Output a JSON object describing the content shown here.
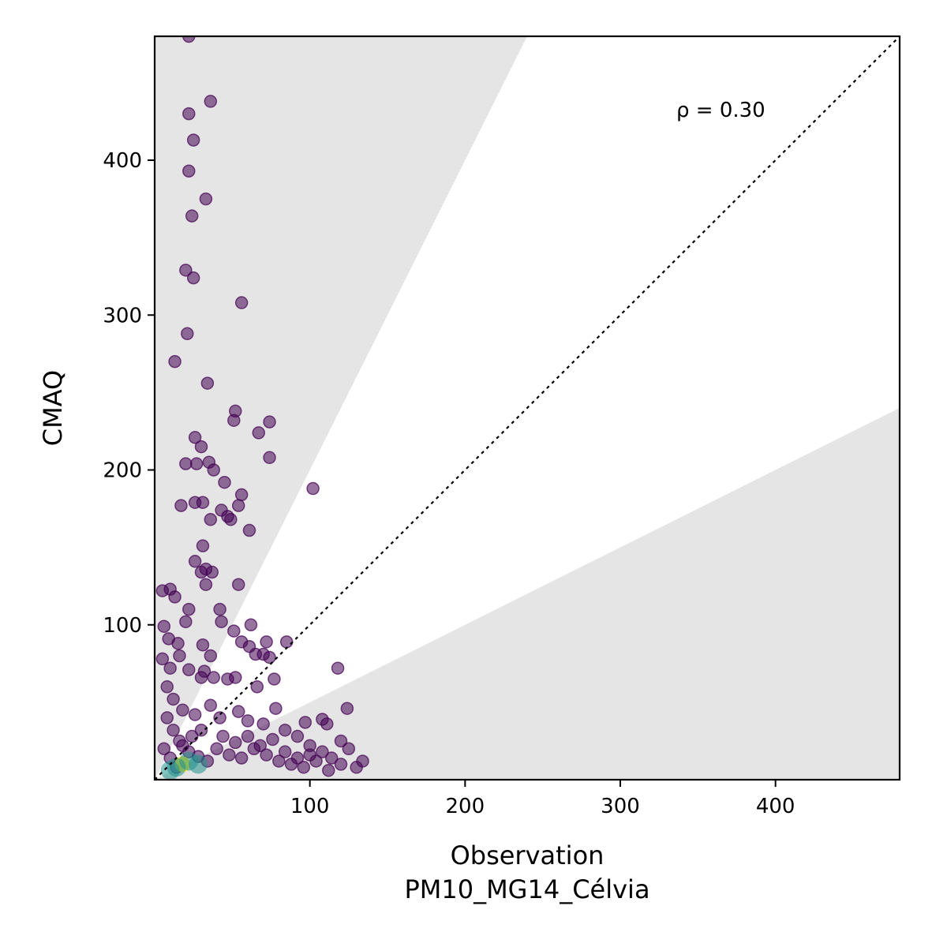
{
  "chart_data": {
    "type": "scatter",
    "title": "",
    "xlabel": "Observation",
    "xlabel_sub": "PM10_MG14_Célvia",
    "ylabel": "CMAQ",
    "xlim": [
      0,
      480
    ],
    "ylim": [
      0,
      480
    ],
    "xticks": [
      100,
      200,
      300,
      400
    ],
    "yticks": [
      100,
      200,
      300,
      400
    ],
    "grid": false,
    "annotation": "ρ = 0.30",
    "reference_line": {
      "type": "1:1",
      "style": "dotted",
      "color": "#000000"
    },
    "shaded_regions": [
      {
        "name": "above 2:1",
        "slope": 2,
        "color": "#e5e5e5"
      },
      {
        "name": "below 1:2",
        "slope": 0.5,
        "color": "#e5e5e5"
      }
    ],
    "colormap": "viridis (point density)",
    "colors": {
      "low_density": "#440154",
      "mid_density": "#21918c",
      "high_density": "#fde725"
    },
    "points": [
      [
        22,
        480
      ],
      [
        36,
        438
      ],
      [
        22,
        430
      ],
      [
        25,
        413
      ],
      [
        22,
        393
      ],
      [
        33,
        375
      ],
      [
        24,
        364
      ],
      [
        20,
        329
      ],
      [
        25,
        324
      ],
      [
        56,
        308
      ],
      [
        21,
        288
      ],
      [
        13,
        270
      ],
      [
        34,
        256
      ],
      [
        52,
        238
      ],
      [
        51,
        232
      ],
      [
        74,
        231
      ],
      [
        67,
        224
      ],
      [
        26,
        221
      ],
      [
        30,
        215
      ],
      [
        74,
        208
      ],
      [
        20,
        204
      ],
      [
        27,
        204
      ],
      [
        35,
        205
      ],
      [
        38,
        200
      ],
      [
        45,
        192
      ],
      [
        56,
        184
      ],
      [
        102,
        188
      ],
      [
        54,
        177
      ],
      [
        17,
        177
      ],
      [
        26,
        179
      ],
      [
        31,
        179
      ],
      [
        43,
        174
      ],
      [
        47,
        170
      ],
      [
        49,
        168
      ],
      [
        36,
        168
      ],
      [
        61,
        161
      ],
      [
        31,
        151
      ],
      [
        26,
        141
      ],
      [
        33,
        136
      ],
      [
        30,
        134
      ],
      [
        37,
        134
      ],
      [
        33,
        126
      ],
      [
        54,
        126
      ],
      [
        5,
        122
      ],
      [
        10,
        123
      ],
      [
        13,
        118
      ],
      [
        22,
        110
      ],
      [
        42,
        110
      ],
      [
        20,
        102
      ],
      [
        43,
        102
      ],
      [
        62,
        100
      ],
      [
        6,
        99
      ],
      [
        9,
        91
      ],
      [
        15,
        88
      ],
      [
        31,
        87
      ],
      [
        51,
        96
      ],
      [
        56,
        89
      ],
      [
        61,
        86
      ],
      [
        72,
        89
      ],
      [
        85,
        89
      ],
      [
        65,
        81
      ],
      [
        70,
        81
      ],
      [
        74,
        79
      ],
      [
        36,
        80
      ],
      [
        5,
        78
      ],
      [
        16,
        80
      ],
      [
        10,
        72
      ],
      [
        22,
        71
      ],
      [
        32,
        70
      ],
      [
        30,
        66
      ],
      [
        38,
        66
      ],
      [
        47,
        65
      ],
      [
        52,
        66
      ],
      [
        66,
        60
      ],
      [
        77,
        65
      ],
      [
        118,
        72
      ],
      [
        124,
        46
      ],
      [
        111,
        36
      ],
      [
        78,
        46
      ],
      [
        97,
        37
      ],
      [
        108,
        39
      ],
      [
        120,
        25
      ],
      [
        125,
        20
      ],
      [
        134,
        12
      ],
      [
        130,
        8
      ],
      [
        8,
        60
      ],
      [
        12,
        52
      ],
      [
        18,
        45
      ],
      [
        26,
        42
      ],
      [
        36,
        48
      ],
      [
        42,
        40
      ],
      [
        54,
        44
      ],
      [
        60,
        38
      ],
      [
        70,
        36
      ],
      [
        84,
        32
      ],
      [
        92,
        28
      ],
      [
        100,
        22
      ],
      [
        108,
        18
      ],
      [
        114,
        14
      ],
      [
        120,
        10
      ],
      [
        12,
        32
      ],
      [
        16,
        25
      ],
      [
        22,
        18
      ],
      [
        28,
        15
      ],
      [
        34,
        12
      ],
      [
        40,
        20
      ],
      [
        48,
        16
      ],
      [
        56,
        14
      ],
      [
        64,
        20
      ],
      [
        72,
        16
      ],
      [
        80,
        12
      ],
      [
        88,
        10
      ],
      [
        96,
        8
      ],
      [
        104,
        12
      ],
      [
        112,
        6
      ],
      [
        6,
        20
      ],
      [
        10,
        14
      ],
      [
        14,
        8
      ],
      [
        18,
        22
      ],
      [
        24,
        28
      ],
      [
        30,
        32
      ],
      [
        44,
        28
      ],
      [
        52,
        24
      ],
      [
        60,
        28
      ],
      [
        68,
        22
      ],
      [
        76,
        26
      ],
      [
        84,
        18
      ],
      [
        92,
        14
      ],
      [
        100,
        16
      ],
      [
        8,
        40
      ]
    ],
    "density_core": [
      {
        "x": 18,
        "y": 10,
        "level": "high"
      },
      {
        "x": 22,
        "y": 12,
        "level": "mid"
      },
      {
        "x": 14,
        "y": 8,
        "level": "mid"
      },
      {
        "x": 28,
        "y": 10,
        "level": "mid"
      },
      {
        "x": 10,
        "y": 6,
        "level": "mid"
      }
    ]
  }
}
